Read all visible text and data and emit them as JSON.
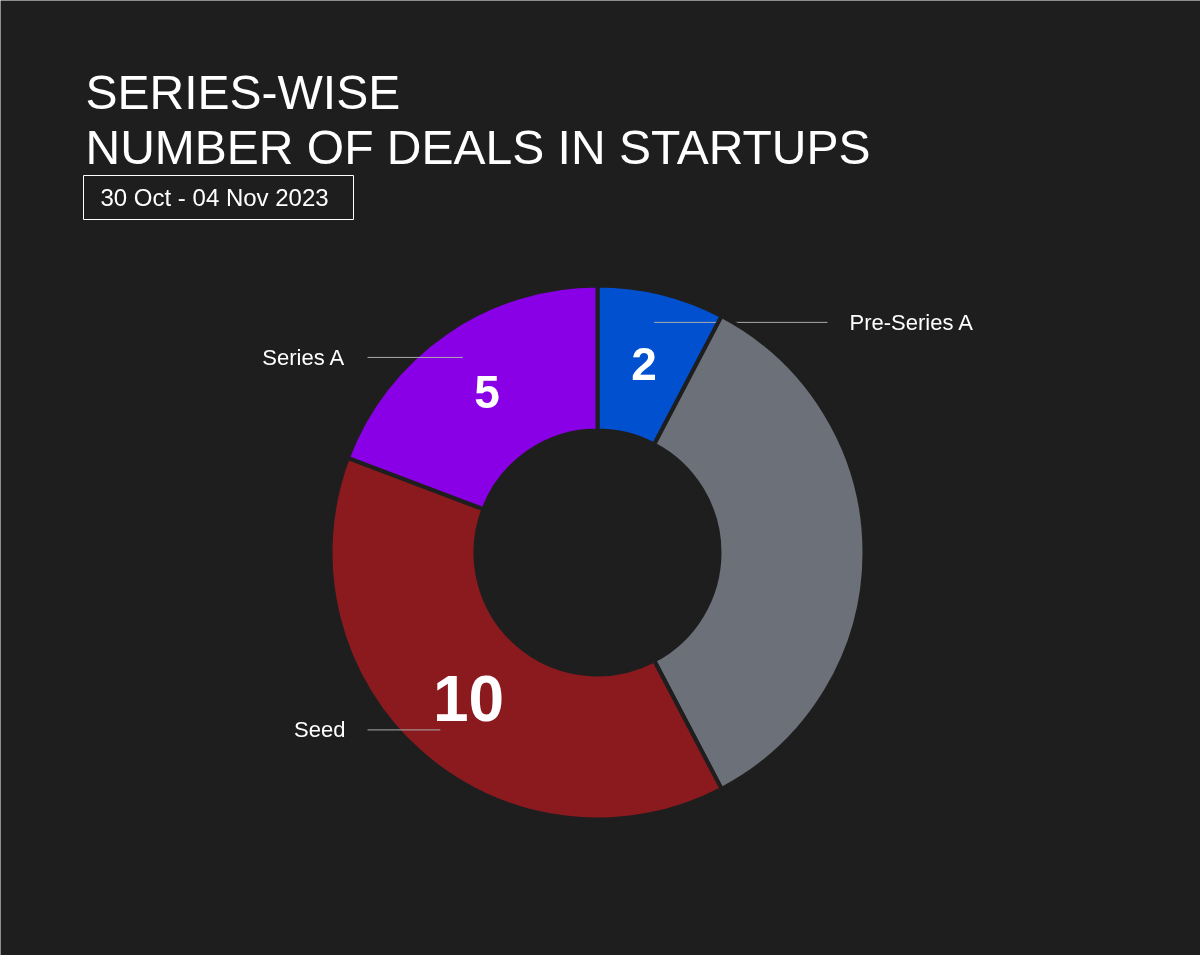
{
  "chart_data": {
    "type": "donut",
    "title": "SERIES-WISE\nNUMBER OF DEALS IN STARTUPS",
    "subtitle": "30 Oct - 04 Nov 2023",
    "categories": [
      "Pre-Series A",
      null,
      "Seed",
      "Series A"
    ],
    "values": [
      2,
      9,
      10,
      5
    ],
    "colors": [
      "#0050d0",
      "#6b7079",
      "#8b1a1f",
      "#8a00e6"
    ],
    "value_labels": [
      "2",
      null,
      "10",
      "5"
    ]
  }
}
